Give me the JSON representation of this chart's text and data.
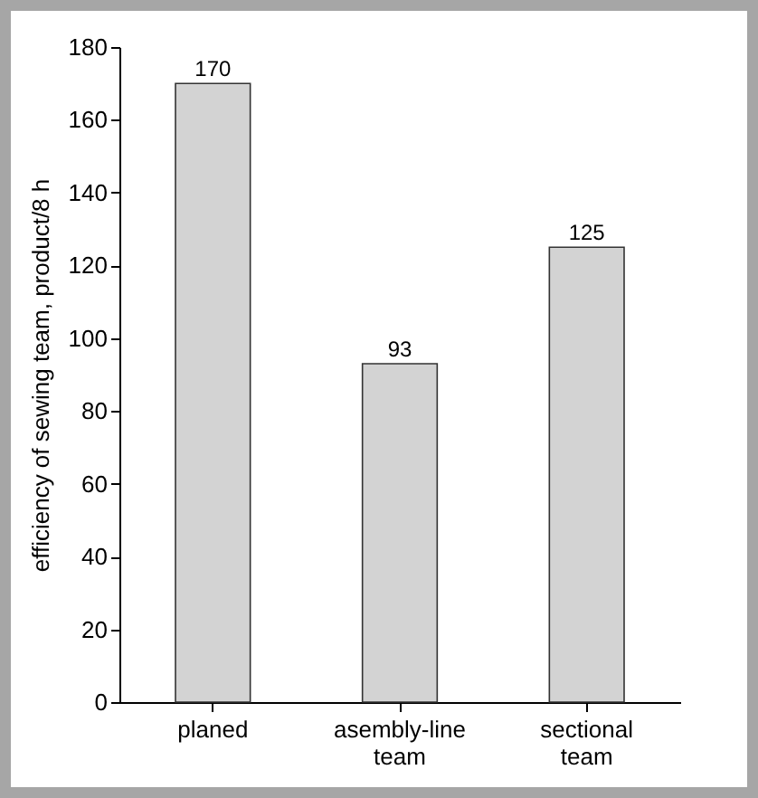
{
  "chart_data": {
    "type": "bar",
    "ylabel": "efficiency of sewing team, product/8 h",
    "categories": [
      "planed",
      "asembly-line team",
      "sectional team"
    ],
    "values": [
      170,
      93,
      125
    ],
    "color": "#d3d3d3",
    "ylim": [
      0,
      180
    ],
    "yticks": [
      0,
      20,
      40,
      60,
      80,
      100,
      120,
      140,
      160,
      180
    ],
    "grid": false,
    "data_labels": true
  }
}
